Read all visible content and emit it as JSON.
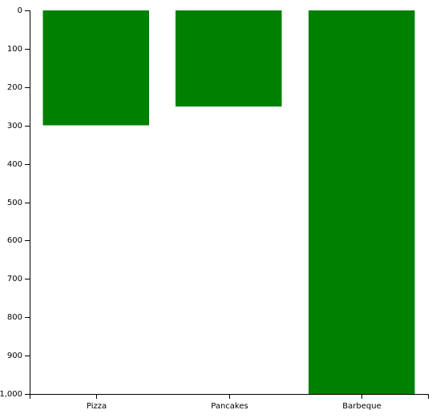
{
  "chart_data": {
    "type": "bar",
    "orientation": "vertical-inverted",
    "categories": [
      "Pizza",
      "Pancakes",
      "Barbeque"
    ],
    "values": [
      300,
      250,
      1000
    ],
    "ylim": [
      0,
      1000
    ],
    "y_ticks": [
      0,
      100,
      200,
      300,
      400,
      500,
      600,
      700,
      800,
      900,
      1000
    ],
    "y_tick_labels": [
      "0",
      "100",
      "200",
      "300",
      "400",
      "500",
      "600",
      "700",
      "800",
      "900",
      "1,000"
    ],
    "title": "",
    "xlabel": "",
    "ylabel": "",
    "grid": false,
    "legend": "none",
    "bar_color": "#008000",
    "axis_color": "#000000"
  }
}
